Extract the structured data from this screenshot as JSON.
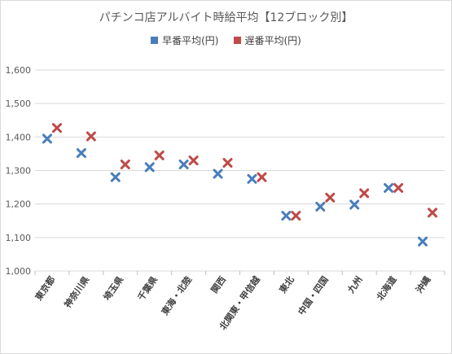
{
  "chart_data": {
    "type": "scatter",
    "title": "パチンコ店アルバイト時給平均【12ブロック別】",
    "categories": [
      "東京都",
      "神奈川県",
      "埼玉県",
      "千葉県",
      "東海・北陸",
      "関西",
      "北関東・甲信越",
      "東北",
      "中国・四国",
      "九州",
      "北海道",
      "沖縄"
    ],
    "series": [
      {
        "name": "早番平均(円)",
        "color": "#4a7ebb",
        "values": [
          1395,
          1352,
          1280,
          1310,
          1318,
          1290,
          1275,
          1165,
          1192,
          1198,
          1248,
          1088
        ]
      },
      {
        "name": "遅番平均(円)",
        "color": "#be4b48",
        "values": [
          1427,
          1402,
          1318,
          1345,
          1330,
          1323,
          1280,
          1165,
          1219,
          1232,
          1248,
          1174
        ]
      }
    ],
    "ylim": [
      1000,
      1600
    ],
    "yticks": [
      "1,000",
      "1,100",
      "1,200",
      "1,300",
      "1,400",
      "1,500",
      "1,600"
    ],
    "grid": true,
    "legend_position": "top"
  }
}
